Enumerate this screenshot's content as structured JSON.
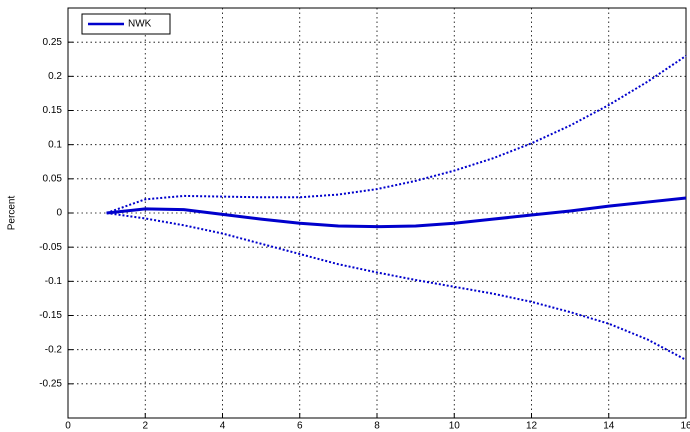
{
  "chart_data": {
    "type": "line",
    "y_label": "Percent",
    "x": [
      1,
      2,
      3,
      4,
      5,
      6,
      7,
      8,
      9,
      10,
      11,
      12,
      13,
      14,
      15,
      16
    ],
    "series": [
      {
        "name": "NWK",
        "color": "#0000cc",
        "linestyle": "solid",
        "values": [
          0,
          0.006,
          0.005,
          -0.002,
          -0.009,
          -0.015,
          -0.019,
          -0.02,
          -0.019,
          -0.015,
          -0.009,
          -0.003,
          0.003,
          0.01,
          0.016,
          0.022
        ]
      },
      {
        "color": "#0000cc",
        "linestyle": "dotted",
        "values": [
          0,
          0.02,
          0.025,
          0.024,
          0.023,
          0.023,
          0.027,
          0.035,
          0.047,
          0.062,
          0.08,
          0.102,
          0.128,
          0.158,
          0.192,
          0.23
        ]
      },
      {
        "color": "#0000cc",
        "linestyle": "dotted",
        "values": [
          0,
          -0.008,
          -0.018,
          -0.03,
          -0.045,
          -0.06,
          -0.075,
          -0.087,
          -0.098,
          -0.108,
          -0.118,
          -0.13,
          -0.145,
          -0.162,
          -0.185,
          -0.215
        ]
      }
    ],
    "xlim": [
      0,
      16
    ],
    "xticks": [
      0,
      2,
      4,
      6,
      8,
      10,
      12,
      14,
      16
    ],
    "ylim": [
      -0.3,
      0.3
    ],
    "yticks": [
      -0.25,
      -0.2,
      -0.15,
      -0.1,
      -0.05,
      0,
      0.05,
      0.1,
      0.15,
      0.2,
      0.25
    ],
    "grid": true,
    "legend": "upper left"
  }
}
